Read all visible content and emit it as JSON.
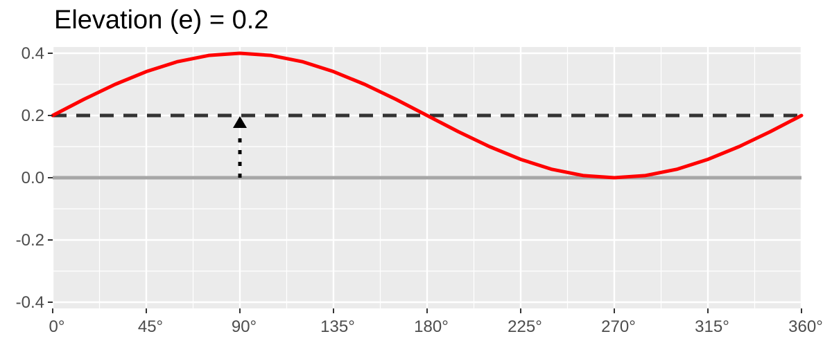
{
  "chart_data": {
    "type": "line",
    "title": "Elevation (e) = 0.2",
    "xlabel": "",
    "ylabel": "",
    "xlim": [
      0,
      360
    ],
    "ylim": [
      -0.42,
      0.42
    ],
    "x_ticks": [
      {
        "value": 0,
        "label": "0°"
      },
      {
        "value": 45,
        "label": "45°"
      },
      {
        "value": 90,
        "label": "90°"
      },
      {
        "value": 135,
        "label": "135°"
      },
      {
        "value": 180,
        "label": "180°"
      },
      {
        "value": 225,
        "label": "225°"
      },
      {
        "value": 270,
        "label": "270°"
      },
      {
        "value": 315,
        "label": "315°"
      },
      {
        "value": 360,
        "label": "360°"
      }
    ],
    "y_ticks": [
      {
        "value": 0.4,
        "label": "0.4"
      },
      {
        "value": 0.2,
        "label": "0.2"
      },
      {
        "value": 0.0,
        "label": "0.0"
      },
      {
        "value": -0.2,
        "label": "-0.2"
      },
      {
        "value": -0.4,
        "label": "-0.4"
      }
    ],
    "grid": true,
    "background_color": "#ebebeb",
    "series": [
      {
        "color": "#ff0000",
        "style": "solid",
        "x": [
          0,
          15,
          30,
          45,
          60,
          75,
          90,
          105,
          120,
          135,
          150,
          165,
          180,
          195,
          210,
          225,
          240,
          255,
          270,
          285,
          300,
          315,
          330,
          345,
          360
        ],
        "y": [
          0.2,
          0.252,
          0.3,
          0.341,
          0.373,
          0.393,
          0.4,
          0.393,
          0.373,
          0.341,
          0.3,
          0.252,
          0.2,
          0.148,
          0.1,
          0.059,
          0.027,
          0.007,
          0.0,
          0.007,
          0.027,
          0.059,
          0.1,
          0.148,
          0.2
        ]
      }
    ],
    "reference_lines": [
      {
        "orientation": "horizontal",
        "y": 0.2,
        "color": "#333333",
        "style": "dashed"
      },
      {
        "orientation": "horizontal",
        "y": 0.0,
        "color": "#a6a6a6",
        "style": "solid"
      }
    ],
    "annotations": [
      {
        "type": "arrow",
        "x": 90,
        "y_from": 0.0,
        "y_to": 0.2,
        "color": "#000000",
        "style": "dotted"
      }
    ]
  }
}
